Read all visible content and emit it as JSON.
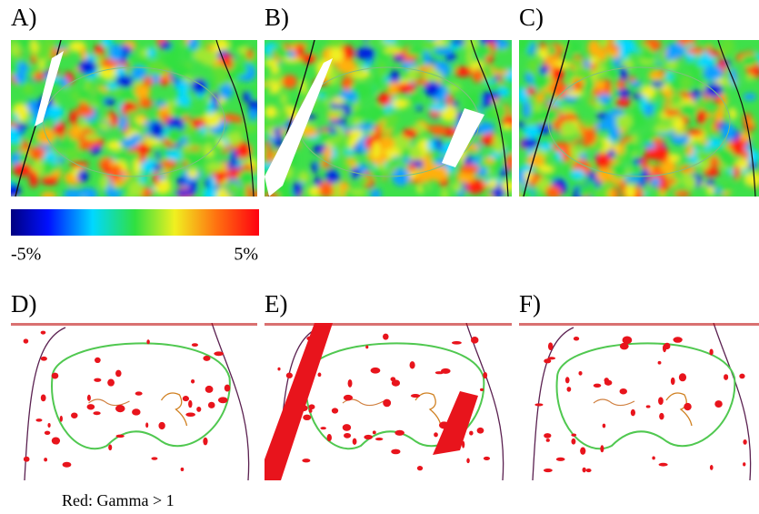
{
  "panels": [
    {
      "label": "A)"
    },
    {
      "label": "B)"
    },
    {
      "label": "C)"
    },
    {
      "label": "D)"
    },
    {
      "label": "E)"
    },
    {
      "label": "F)"
    }
  ],
  "colorbar": {
    "min_label": "-5%",
    "max_label": "5%"
  },
  "caption": "Red: Gamma > 1"
}
